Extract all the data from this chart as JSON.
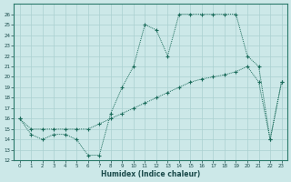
{
  "xlabel": "Humidex (Indice chaleur)",
  "xlim": [
    -0.5,
    23.5
  ],
  "ylim": [
    12,
    27
  ],
  "yticks": [
    12,
    13,
    14,
    15,
    16,
    17,
    18,
    19,
    20,
    21,
    22,
    23,
    24,
    25,
    26
  ],
  "xticks": [
    0,
    1,
    2,
    3,
    4,
    5,
    6,
    7,
    8,
    9,
    10,
    11,
    12,
    13,
    14,
    15,
    16,
    17,
    18,
    19,
    20,
    21,
    22,
    23
  ],
  "bg_color": "#cce8e8",
  "grid_color": "#aad0d0",
  "line_color": "#1a6b5a",
  "line1_x": [
    0,
    1,
    2,
    3,
    4,
    5,
    6,
    7,
    8,
    9,
    10,
    11,
    12,
    13,
    14,
    15,
    16,
    17,
    18,
    19,
    20,
    21,
    22,
    23
  ],
  "line1_y": [
    16,
    14.5,
    14,
    14.5,
    14.5,
    14,
    12.5,
    12.5,
    16.5,
    19,
    21,
    25,
    24.5,
    22,
    26,
    26,
    26,
    26,
    26,
    26,
    22,
    21,
    14,
    19.5
  ],
  "line2_x": [
    0,
    1,
    2,
    3,
    4,
    5,
    6,
    7,
    8,
    9,
    10,
    11,
    12,
    13,
    14,
    15,
    16,
    17,
    18,
    19,
    20,
    21,
    22,
    23
  ],
  "line2_y": [
    16,
    15,
    15,
    15,
    15,
    15,
    15,
    15.5,
    16,
    16.5,
    17,
    17.5,
    18,
    18.5,
    19,
    19.5,
    19.8,
    20,
    20.2,
    20.5,
    21,
    19.5,
    14,
    19.5
  ]
}
